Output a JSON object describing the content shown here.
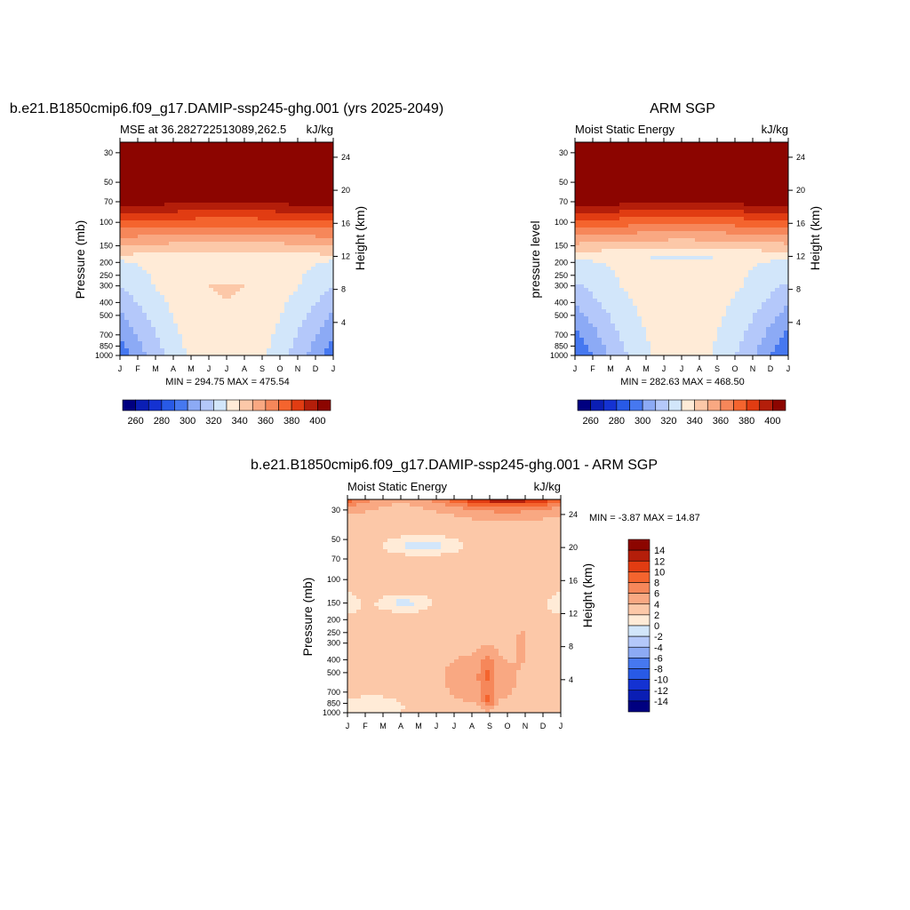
{
  "chart_data": [
    {
      "type": "heatmap",
      "panel": "model",
      "title": "b.e21.B1850cmip6.f09_g17.DAMIP-ssp245-ghg.001 (yrs 2025-2049)",
      "subtitle_left": "MSE at 36.282722513089,262.5",
      "subtitle_right": "kJ/kg",
      "ylabel": "Pressure (mb)",
      "y2label": "Height (km)",
      "x_ticks": [
        "J",
        "F",
        "M",
        "A",
        "M",
        "J",
        "J",
        "A",
        "S",
        "O",
        "N",
        "D",
        "J"
      ],
      "y_ticks": [
        30,
        50,
        70,
        100,
        150,
        200,
        250,
        300,
        400,
        500,
        700,
        850,
        1000
      ],
      "y2_ticks": [
        4,
        8,
        12,
        16,
        20,
        24
      ],
      "ylim": [
        1000,
        25
      ],
      "minmax": "MIN = 294.75 MAX = 475.54",
      "min": 294.75,
      "max": 475.54,
      "colorbar_ticks": [
        260,
        280,
        300,
        320,
        340,
        360,
        380,
        400
      ],
      "contour_levels": [
        250,
        260,
        270,
        280,
        290,
        300,
        310,
        320,
        330,
        340,
        350,
        360,
        370,
        380,
        390,
        400,
        410
      ]
    },
    {
      "type": "heatmap",
      "panel": "obs",
      "title": "ARM SGP",
      "subtitle_left": "Moist Static Energy",
      "subtitle_right": "kJ/kg",
      "ylabel": "pressure level",
      "y2label": "Height (km)",
      "x_ticks": [
        "J",
        "F",
        "M",
        "A",
        "M",
        "J",
        "J",
        "A",
        "S",
        "O",
        "N",
        "D",
        "J"
      ],
      "y_ticks": [
        30,
        50,
        70,
        100,
        150,
        200,
        250,
        300,
        400,
        500,
        700,
        850,
        1000
      ],
      "y2_ticks": [
        4,
        8,
        12,
        16,
        20,
        24
      ],
      "ylim": [
        1000,
        25
      ],
      "minmax": "MIN = 282.63 MAX = 468.50",
      "min": 282.63,
      "max": 468.5,
      "colorbar_ticks": [
        260,
        280,
        300,
        320,
        340,
        360,
        380,
        400
      ],
      "contour_levels": [
        250,
        260,
        270,
        280,
        290,
        300,
        310,
        320,
        330,
        340,
        350,
        360,
        370,
        380,
        390,
        400,
        410
      ]
    },
    {
      "type": "heatmap",
      "panel": "diff",
      "title": "b.e21.B1850cmip6.f09_g17.DAMIP-ssp245-ghg.001 - ARM SGP",
      "subtitle_left": "Moist Static Energy",
      "subtitle_right": "kJ/kg",
      "ylabel": "Pressure (mb)",
      "y2label": "Height (km)",
      "x_ticks": [
        "J",
        "F",
        "M",
        "A",
        "M",
        "J",
        "J",
        "A",
        "S",
        "O",
        "N",
        "D",
        "J"
      ],
      "y_ticks": [
        30,
        50,
        70,
        100,
        150,
        200,
        250,
        300,
        400,
        500,
        700,
        850,
        1000
      ],
      "y2_ticks": [
        4,
        8,
        12,
        16,
        20,
        24
      ],
      "ylim": [
        1000,
        25
      ],
      "minmax": "MIN =  -3.87 MAX =  14.87",
      "min": -3.87,
      "max": 14.87,
      "colorbar_ticks": [
        14,
        12,
        10,
        8,
        6,
        4,
        2,
        0,
        -2,
        -4,
        -6,
        -8,
        -10,
        -12,
        -14
      ],
      "contour_levels": [
        -16,
        -14,
        -12,
        -10,
        -8,
        -6,
        -4,
        -2,
        0,
        2,
        4,
        6,
        8,
        10,
        12,
        14,
        16
      ]
    }
  ],
  "palette": [
    "#000080",
    "#0a1eb4",
    "#1432d2",
    "#285ae6",
    "#4678f0",
    "#8caaf5",
    "#b4c8fa",
    "#d2e6fa",
    "#ffebd7",
    "#fcc8a8",
    "#f9a882",
    "#f6875a",
    "#f4642e",
    "#e13c12",
    "#b41e0a",
    "#8c0500"
  ]
}
